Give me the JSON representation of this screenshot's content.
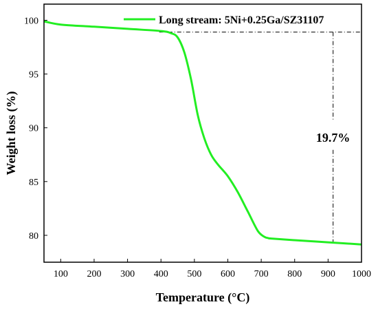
{
  "chart_data": {
    "type": "line",
    "title": "",
    "xlabel": "Temperature (°C)",
    "ylabel": "Weight loss (%)",
    "xlim": [
      50,
      1000
    ],
    "ylim": [
      77.5,
      101.5
    ],
    "xticks": [
      100,
      200,
      300,
      400,
      500,
      600,
      700,
      800,
      900,
      1000
    ],
    "yticks": [
      80,
      85,
      90,
      95,
      100
    ],
    "grid": false,
    "legend_position": "top-right",
    "series": [
      {
        "name": "Long stream: 5Ni+0.25Ga/SZ31107",
        "color": "#22ee22",
        "x": [
          50,
          100,
          200,
          300,
          400,
          430,
          450,
          470,
          490,
          510,
          530,
          550,
          570,
          600,
          630,
          660,
          690,
          710,
          720,
          730,
          800,
          900,
          1000
        ],
        "y": [
          99.9,
          99.6,
          99.4,
          99.2,
          99.0,
          98.8,
          98.4,
          97.0,
          94.5,
          91.2,
          89.0,
          87.5,
          86.6,
          85.5,
          84.0,
          82.2,
          80.4,
          79.85,
          79.75,
          79.7,
          79.55,
          79.35,
          79.15
        ]
      }
    ],
    "annotations": {
      "loss_label": "19.7%",
      "ref_line_y": 98.9,
      "ref_line_x_start": 395,
      "ref_line_x_end": 1000,
      "vline_x": 915,
      "vline_y_top": 98.9,
      "vline_y_bottom": 79.3
    }
  }
}
